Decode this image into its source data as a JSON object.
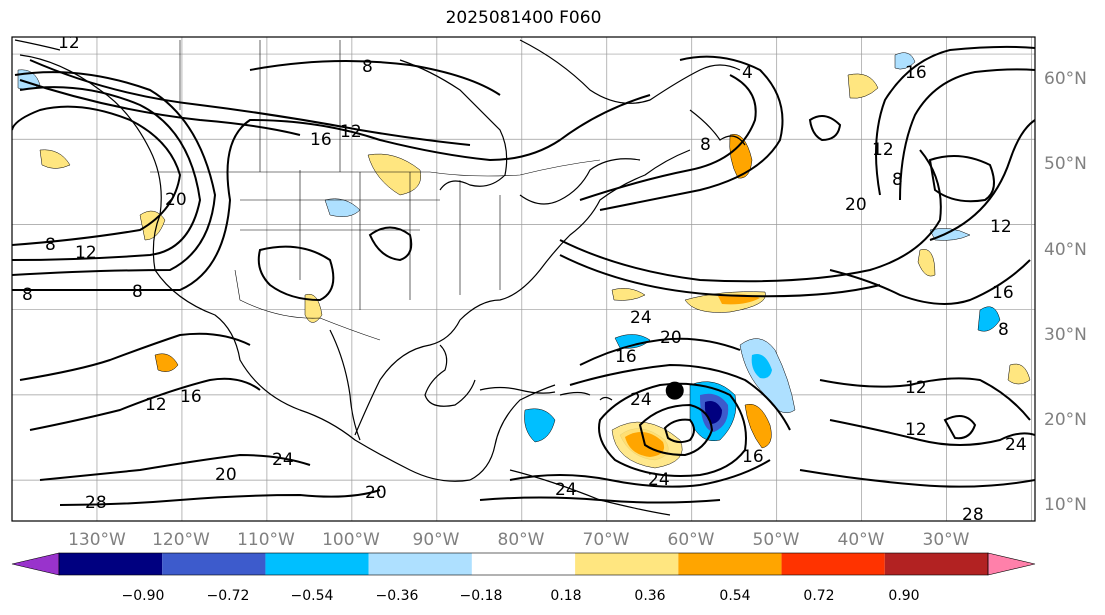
{
  "title": "2025081400 F060",
  "lat_labels": [
    "60°N",
    "50°N",
    "40°N",
    "30°N",
    "20°N",
    "10°N"
  ],
  "lon_labels": [
    "130°W",
    "120°W",
    "110°W",
    "100°W",
    "90°W",
    "80°W",
    "70°W",
    "60°W",
    "50°W",
    "40°W",
    "30°W"
  ],
  "contour_labels": [
    "12",
    "8",
    "16",
    "12",
    "4",
    "16",
    "8",
    "20",
    "12",
    "8",
    "20",
    "8",
    "12",
    "8",
    "8",
    "24",
    "20",
    "16",
    "24",
    "12",
    "16",
    "12",
    "24",
    "20",
    "20",
    "16",
    "12",
    "24",
    "28",
    "24",
    "28",
    "24",
    "8",
    "12",
    "16"
  ],
  "colorbar": {
    "tick_labels": [
      "−0.90",
      "−0.72",
      "−0.54",
      "−0.36",
      "−0.18",
      "0.18",
      "0.36",
      "0.54",
      "0.72",
      "0.90"
    ],
    "colors": [
      "#9933cc",
      "#000080",
      "#3d5bcc",
      "#00bfff",
      "#aee0ff",
      "#ffffff",
      "#ffe680",
      "#ffa500",
      "#ff3300",
      "#b22222",
      "#ff80aa"
    ]
  },
  "storm_marker": {
    "lon": -62,
    "lat": 20.5
  }
}
